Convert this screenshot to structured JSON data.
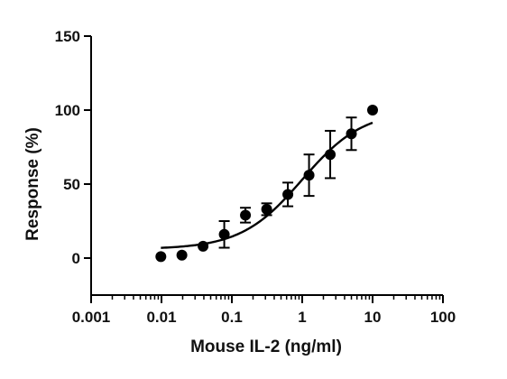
{
  "chart_data": {
    "type": "scatter",
    "title": "",
    "xlabel": "Mouse IL-2   (ng/ml)",
    "ylabel": "Response (%)",
    "x_scale": "log",
    "xlim": [
      0.001,
      100
    ],
    "ylim": [
      -25,
      150
    ],
    "x_ticks": [
      0.001,
      0.01,
      0.1,
      1,
      10,
      100
    ],
    "x_tick_labels": [
      "0.001",
      "0.01",
      "0.1",
      "1",
      "10",
      "100"
    ],
    "y_ticks": [
      0,
      50,
      100,
      150
    ],
    "y_tick_labels": [
      "0",
      "50",
      "100",
      "150"
    ],
    "grid": false,
    "legend": "none",
    "points": [
      {
        "x": 0.0098,
        "y": 1,
        "err": 0
      },
      {
        "x": 0.0195,
        "y": 2,
        "err": 0
      },
      {
        "x": 0.039,
        "y": 8,
        "err": 0
      },
      {
        "x": 0.078,
        "y": 16,
        "err": 9
      },
      {
        "x": 0.156,
        "y": 29,
        "err": 5
      },
      {
        "x": 0.3125,
        "y": 33,
        "err": 4
      },
      {
        "x": 0.625,
        "y": 43,
        "err": 8
      },
      {
        "x": 1.25,
        "y": 56,
        "err": 14
      },
      {
        "x": 2.5,
        "y": 70,
        "err": 16
      },
      {
        "x": 5,
        "y": 84,
        "err": 11
      },
      {
        "x": 10,
        "y": 100,
        "err": 0
      }
    ],
    "fit_curve": {
      "model": "4PL",
      "bottom": 6,
      "top": 100,
      "ec50": 1.0,
      "hill": 1.0,
      "x_range": [
        0.0098,
        10
      ]
    },
    "colors": {
      "marker": "#000000",
      "line": "#000000",
      "axis": "#000000"
    }
  }
}
